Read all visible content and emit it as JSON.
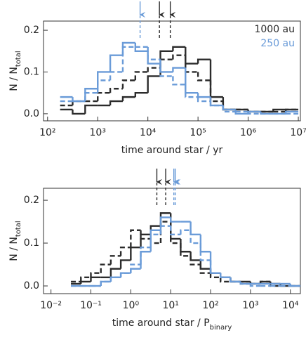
{
  "chart_data": [
    {
      "type": "histogram",
      "log_x": true,
      "xlabel": "time around star / yr",
      "ylabel": {
        "text": "N / N",
        "sub": "total"
      },
      "xlim": [
        83,
        11000000
      ],
      "ylim": [
        -0.017,
        0.222
      ],
      "xticks": [
        {
          "value": 100,
          "label": "10²"
        },
        {
          "value": 1000,
          "label": "10³"
        },
        {
          "value": 10000,
          "label": "10⁴"
        },
        {
          "value": 100000,
          "label": "10⁵"
        },
        {
          "value": 1000000,
          "label": "10⁶"
        },
        {
          "value": 10000000,
          "label": "10⁷"
        }
      ],
      "yticks": [
        {
          "value": 0,
          "label": "0.0"
        },
        0.1,
        0.2
      ],
      "legend": "upper right",
      "bins": [
        178,
        316,
        562,
        1000,
        1778,
        3162,
        5623,
        10000,
        17783,
        31623,
        56234,
        100000,
        177828,
        316228,
        562341,
        1000000,
        1778279,
        3162278,
        5623413,
        10000000
      ],
      "series": [
        {
          "name": "1000 au",
          "color": "#2b2b2b",
          "dashed": false,
          "values": [
            0.01,
            0.0,
            0.02,
            0.02,
            0.03,
            0.04,
            0.05,
            0.09,
            0.15,
            0.16,
            0.12,
            0.13,
            0.04,
            0.01,
            0.01,
            0.005,
            0.005,
            0.01,
            0.01
          ]
        },
        {
          "color": "#2b2b2b",
          "dashed": true,
          "values": [
            0.02,
            0.03,
            0.03,
            0.05,
            0.06,
            0.08,
            0.1,
            0.11,
            0.13,
            0.14,
            0.1,
            0.08,
            0.03,
            0.01,
            0.01,
            0.005,
            0.005,
            0.005,
            0.01
          ]
        },
        {
          "name": "250 au",
          "color": "#6a9bd8",
          "dashed": false,
          "values": [
            0.04,
            0.03,
            0.06,
            0.1,
            0.14,
            0.17,
            0.15,
            0.12,
            0.1,
            0.11,
            0.05,
            0.04,
            0.02,
            0.01,
            0.0,
            0.005,
            0.0,
            0.0,
            0.005
          ]
        },
        {
          "color": "#6a9bd8",
          "dashed": true,
          "values": [
            0.03,
            0.03,
            0.05,
            0.08,
            0.1,
            0.16,
            0.16,
            0.13,
            0.09,
            0.07,
            0.04,
            0.03,
            0.02,
            0.005,
            0.005,
            0.0,
            0.0,
            0.0,
            0.0
          ]
        }
      ],
      "arrows": [
        {
          "x": 7000,
          "color": "#6a9bd8"
        },
        {
          "x": 17000,
          "color": "#2b2b2b"
        },
        {
          "x": 28000,
          "color": "#2b2b2b"
        }
      ]
    },
    {
      "type": "histogram",
      "log_x": true,
      "xlabel": {
        "text": "time around star / P",
        "sub": "binary"
      },
      "ylabel": {
        "text": "N / N",
        "sub": "total"
      },
      "xlim": [
        0.0065,
        17800
      ],
      "ylim": [
        -0.018,
        0.228
      ],
      "xticks": [
        {
          "value": 0.01,
          "label": "10⁻²"
        },
        {
          "value": 0.1,
          "label": "10⁻¹"
        },
        {
          "value": 1,
          "label": "10⁰"
        },
        {
          "value": 10,
          "label": "10¹"
        },
        {
          "value": 100,
          "label": "10²"
        },
        {
          "value": 1000,
          "label": "10³"
        },
        {
          "value": 10000,
          "label": "10⁴"
        }
      ],
      "yticks": [
        {
          "value": 0,
          "label": "0.0"
        },
        0.1,
        0.2
      ],
      "bins": [
        0.0316,
        0.0562,
        0.1,
        0.178,
        0.316,
        0.562,
        1,
        1.778,
        3.162,
        5.623,
        10,
        17.78,
        31.62,
        56.23,
        100,
        177.8,
        316.2,
        562.3,
        1000,
        1778,
        3162,
        5623,
        10000,
        17783
      ],
      "series": [
        {
          "color": "#2b2b2b",
          "dashed": true,
          "values": [
            0.01,
            0.02,
            0.03,
            0.05,
            0.07,
            0.09,
            0.13,
            0.11,
            0.1,
            0.15,
            0.1,
            0.07,
            0.05,
            0.03,
            0.02,
            0.01,
            0.01,
            0.005,
            0.005,
            0.01,
            0.0,
            0.0,
            0.0
          ]
        },
        {
          "color": "#2b2b2b",
          "dashed": false,
          "values": [
            0.005,
            0.01,
            0.02,
            0.02,
            0.04,
            0.06,
            0.09,
            0.12,
            0.14,
            0.17,
            0.11,
            0.08,
            0.06,
            0.04,
            0.03,
            0.02,
            0.01,
            0.01,
            0.005,
            0.01,
            0.005,
            0.0,
            0.0
          ]
        },
        {
          "color": "#6a9bd8",
          "dashed": false,
          "values": [
            0.0,
            0.0,
            0.0,
            0.01,
            0.02,
            0.03,
            0.04,
            0.08,
            0.13,
            0.16,
            0.15,
            0.15,
            0.12,
            0.08,
            0.03,
            0.02,
            0.01,
            0.005,
            0.005,
            0.005,
            0.005,
            0.005,
            0.0
          ]
        },
        {
          "color": "#6a9bd8",
          "dashed": true,
          "values": [
            0.0,
            0.0,
            0.0,
            0.01,
            0.02,
            0.03,
            0.05,
            0.09,
            0.12,
            0.14,
            0.12,
            0.13,
            0.1,
            0.06,
            0.03,
            0.02,
            0.01,
            0.005,
            0.0,
            0.0,
            0.0,
            0.0,
            0.0
          ]
        }
      ],
      "arrows": [
        {
          "x": 4.5,
          "color": "#2b2b2b"
        },
        {
          "x": 7.5,
          "color": "#2b2b2b"
        },
        {
          "x": 12,
          "color": "#6a9bd8"
        },
        {
          "x": 13,
          "color": "#6a9bd8"
        }
      ]
    }
  ]
}
